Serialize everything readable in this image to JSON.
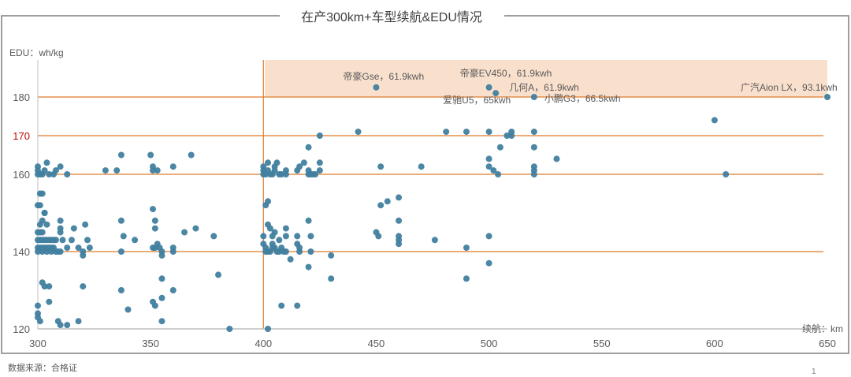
{
  "chart_data": {
    "type": "scatter",
    "title": "在产300km+车型续航&EDU情况",
    "xlabel": "续航：km",
    "ylabel": "EDU：wh/kg",
    "xlim": [
      300,
      650
    ],
    "ylim": [
      120,
      186
    ],
    "x_ticks": [
      300,
      350,
      400,
      450,
      500,
      550,
      600,
      650
    ],
    "y_ticks": [
      120,
      140,
      160,
      170,
      180
    ],
    "highlight_y_tick": 170,
    "grid_lines_y": [
      140,
      160,
      170,
      180
    ],
    "reference_line_x": 400,
    "highlight_region": {
      "x": [
        400,
        650
      ],
      "y": [
        180,
        186.5
      ]
    },
    "annotations": [
      {
        "label": "帝豪Gse，61.9kwh",
        "x": 450,
        "y": 182.5
      },
      {
        "label": "帝豪EV450，61.9kwh",
        "x": 500,
        "y": 182.5
      },
      {
        "label": "几何A，61.9kwh",
        "x": 503,
        "y": 181
      },
      {
        "label": "爱驰U5，65kwh",
        "x": 503,
        "y": 181
      },
      {
        "label": "小鹏G3，66.5kwh",
        "x": 520,
        "y": 180
      },
      {
        "label": "广汽Aion LX，93.1kwh",
        "x": 650,
        "y": 180
      }
    ],
    "series": [
      {
        "name": "在产车型",
        "color": "#41809f",
        "points": [
          [
            300,
            160
          ],
          [
            300,
            161
          ],
          [
            300,
            162
          ],
          [
            301,
            160
          ],
          [
            302,
            160
          ],
          [
            303,
            161
          ],
          [
            304,
            163
          ],
          [
            305,
            160
          ],
          [
            307,
            160
          ],
          [
            308,
            161
          ],
          [
            310,
            162
          ],
          [
            313,
            160
          ],
          [
            301,
            155
          ],
          [
            302,
            155
          ],
          [
            300,
            152
          ],
          [
            301,
            152
          ],
          [
            303,
            150
          ],
          [
            303,
            150
          ],
          [
            302,
            148
          ],
          [
            301,
            147
          ],
          [
            304,
            147
          ],
          [
            300,
            145
          ],
          [
            301,
            145
          ],
          [
            302,
            145
          ],
          [
            300,
            143
          ],
          [
            301,
            143
          ],
          [
            302,
            143
          ],
          [
            303,
            143
          ],
          [
            304,
            143
          ],
          [
            305,
            143
          ],
          [
            306,
            143
          ],
          [
            307,
            143
          ],
          [
            308,
            143
          ],
          [
            300,
            141
          ],
          [
            301,
            141
          ],
          [
            302,
            141
          ],
          [
            303,
            141
          ],
          [
            304,
            141
          ],
          [
            305,
            141
          ],
          [
            306,
            141
          ],
          [
            307,
            141
          ],
          [
            308,
            140
          ],
          [
            300,
            140
          ],
          [
            302,
            140
          ],
          [
            304,
            140
          ],
          [
            306,
            140
          ],
          [
            309,
            140
          ],
          [
            310,
            140
          ],
          [
            310,
            145
          ],
          [
            310,
            148
          ],
          [
            310,
            146
          ],
          [
            311,
            143
          ],
          [
            313,
            141
          ],
          [
            315,
            143
          ],
          [
            316,
            146
          ],
          [
            318,
            141
          ],
          [
            321,
            147
          ],
          [
            322,
            143
          ],
          [
            323,
            141
          ],
          [
            320,
            140
          ],
          [
            320,
            139
          ],
          [
            302,
            132
          ],
          [
            303,
            131
          ],
          [
            300,
            124
          ],
          [
            300,
            123
          ],
          [
            301,
            122
          ],
          [
            305,
            131
          ],
          [
            309,
            122
          ],
          [
            313,
            121
          ],
          [
            318,
            122
          ],
          [
            300,
            126
          ],
          [
            305,
            127
          ],
          [
            310,
            121
          ],
          [
            330,
            161
          ],
          [
            335,
            161
          ],
          [
            337,
            165
          ],
          [
            350,
            165
          ],
          [
            351,
            162
          ],
          [
            351,
            161
          ],
          [
            353,
            161
          ],
          [
            360,
            162
          ],
          [
            368,
            165
          ],
          [
            337,
            148
          ],
          [
            338,
            144
          ],
          [
            343,
            143
          ],
          [
            351,
            151
          ],
          [
            352,
            148
          ],
          [
            352,
            146
          ],
          [
            352,
            141
          ],
          [
            353,
            142
          ],
          [
            354,
            141
          ],
          [
            355,
            139
          ],
          [
            355,
            140
          ],
          [
            360,
            140
          ],
          [
            360,
            141
          ],
          [
            365,
            145
          ],
          [
            370,
            146
          ],
          [
            378,
            144
          ],
          [
            380,
            134
          ],
          [
            351,
            141
          ],
          [
            337,
            140
          ],
          [
            320,
            131
          ],
          [
            337,
            130
          ],
          [
            340,
            125
          ],
          [
            351,
            127
          ],
          [
            352,
            126
          ],
          [
            355,
            128
          ],
          [
            355,
            133
          ],
          [
            360,
            130
          ],
          [
            355,
            122
          ],
          [
            385,
            120
          ],
          [
            400,
            160
          ],
          [
            400,
            161
          ],
          [
            400,
            162
          ],
          [
            401,
            160
          ],
          [
            402,
            161
          ],
          [
            402,
            163
          ],
          [
            403,
            160
          ],
          [
            404,
            160
          ],
          [
            405,
            161
          ],
          [
            405,
            162
          ],
          [
            406,
            163
          ],
          [
            407,
            160
          ],
          [
            408,
            160
          ],
          [
            410,
            160
          ],
          [
            410,
            161
          ],
          [
            415,
            161
          ],
          [
            416,
            162
          ],
          [
            418,
            163
          ],
          [
            420,
            160
          ],
          [
            420,
            161
          ],
          [
            421,
            160
          ],
          [
            422,
            160
          ],
          [
            420,
            167
          ],
          [
            423,
            160
          ],
          [
            425,
            161
          ],
          [
            425,
            163
          ],
          [
            425,
            170
          ],
          [
            442,
            171
          ],
          [
            452,
            162
          ],
          [
            401,
            152
          ],
          [
            402,
            153
          ],
          [
            402,
            147
          ],
          [
            403,
            146
          ],
          [
            405,
            145
          ],
          [
            407,
            143
          ],
          [
            404,
            144
          ],
          [
            410,
            146
          ],
          [
            410,
            144
          ],
          [
            400,
            144
          ],
          [
            400,
            142
          ],
          [
            401,
            141
          ],
          [
            401,
            140
          ],
          [
            402,
            140
          ],
          [
            403,
            140
          ],
          [
            404,
            141
          ],
          [
            404,
            142
          ],
          [
            405,
            141
          ],
          [
            406,
            140
          ],
          [
            407,
            140
          ],
          [
            408,
            141
          ],
          [
            409,
            140
          ],
          [
            410,
            140
          ],
          [
            415,
            142
          ],
          [
            415,
            144
          ],
          [
            416,
            140
          ],
          [
            416,
            141
          ],
          [
            420,
            148
          ],
          [
            421,
            144
          ],
          [
            421,
            140
          ],
          [
            412,
            138
          ],
          [
            420,
            136
          ],
          [
            430,
            139
          ],
          [
            430,
            133
          ],
          [
            408,
            126
          ],
          [
            415,
            126
          ],
          [
            402,
            120
          ],
          [
            450,
            145
          ],
          [
            451,
            144
          ],
          [
            452,
            152
          ],
          [
            455,
            153
          ],
          [
            460,
            154
          ],
          [
            460,
            148
          ],
          [
            460,
            144
          ],
          [
            460,
            143
          ],
          [
            460,
            142
          ],
          [
            476,
            143
          ],
          [
            490,
            141
          ],
          [
            490,
            133
          ],
          [
            500,
            137
          ],
          [
            500,
            144
          ],
          [
            470,
            162
          ],
          [
            481,
            171
          ],
          [
            490,
            171
          ],
          [
            500,
            171
          ],
          [
            505,
            167
          ],
          [
            500,
            164
          ],
          [
            500,
            162
          ],
          [
            502,
            161
          ],
          [
            504,
            160
          ],
          [
            508,
            170
          ],
          [
            510,
            170
          ],
          [
            510,
            171
          ],
          [
            520,
            171
          ],
          [
            520,
            167
          ],
          [
            520,
            162
          ],
          [
            520,
            161
          ],
          [
            520,
            160
          ],
          [
            530,
            164
          ],
          [
            600,
            174
          ],
          [
            605,
            160
          ]
        ]
      },
      {
        "name": "标注车型",
        "color": "#41809f",
        "points": [
          [
            450,
            182.5
          ],
          [
            500,
            182.5
          ],
          [
            503,
            181
          ],
          [
            520,
            180
          ],
          [
            650,
            180
          ]
        ]
      }
    ]
  },
  "footer": {
    "source": "数据来源：合格证",
    "page_number": "1"
  },
  "colors": {
    "point": "#41809f",
    "gridline": "#e07b2a",
    "highlight_fill": "#f9e0cd",
    "frame": "#7f7f7f",
    "axis": "#bfbfbf",
    "highlight_tick": "#c00000"
  }
}
